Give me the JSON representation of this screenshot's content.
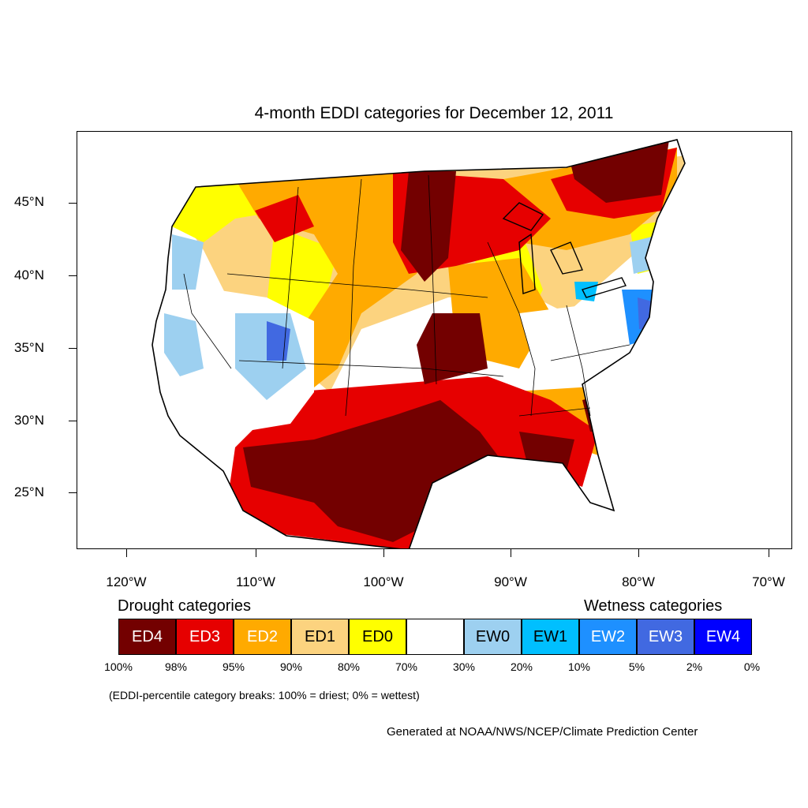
{
  "title": "4-month EDDI categories for December 12, 2011",
  "map": {
    "lat_labels": [
      "45°N",
      "40°N",
      "35°N",
      "30°N",
      "25°N"
    ],
    "lon_labels": [
      "120°W",
      "110°W",
      "100°W",
      "90°W",
      "80°W",
      "70°W"
    ]
  },
  "legend": {
    "drought_title": "Drought categories",
    "wetness_title": "Wetness categories",
    "categories": [
      {
        "label": "ED4",
        "color": "#730000",
        "text_color": "#ffffff"
      },
      {
        "label": "ED3",
        "color": "#e60000",
        "text_color": "#ffffff"
      },
      {
        "label": "ED2",
        "color": "#ffaa00",
        "text_color": "#ffffff"
      },
      {
        "label": "ED1",
        "color": "#fcd37f",
        "text_color": "#000000"
      },
      {
        "label": "ED0",
        "color": "#ffff00",
        "text_color": "#000000"
      },
      {
        "label": "",
        "color": "#ffffff",
        "text_color": "#000000"
      },
      {
        "label": "EW0",
        "color": "#9dd0f0",
        "text_color": "#000000"
      },
      {
        "label": "EW1",
        "color": "#00bfff",
        "text_color": "#000000"
      },
      {
        "label": "EW2",
        "color": "#1e90ff",
        "text_color": "#ffffff"
      },
      {
        "label": "EW3",
        "color": "#4169e1",
        "text_color": "#ffffff"
      },
      {
        "label": "EW4",
        "color": "#0000ff",
        "text_color": "#ffffff"
      }
    ],
    "breaks": [
      "100%",
      "98%",
      "95%",
      "90%",
      "80%",
      "70%",
      "30%",
      "20%",
      "10%",
      "5%",
      "2%",
      "0%"
    ],
    "note": "(EDDI-percentile category breaks: 100% = driest; 0% = wettest)"
  },
  "credit": "Generated at NOAA/NWS/NCEP/Climate Prediction Center"
}
